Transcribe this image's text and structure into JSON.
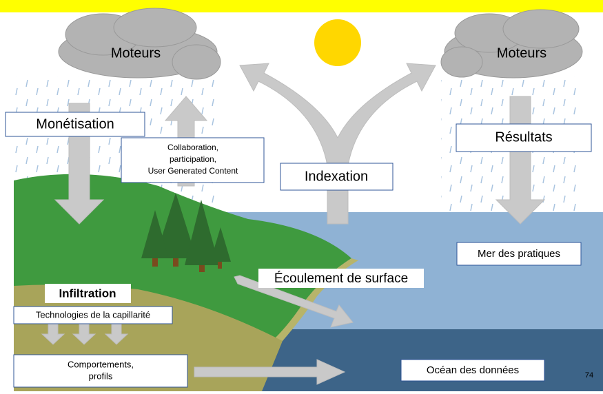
{
  "clouds": [
    {
      "label": "Moteurs"
    },
    {
      "label": "Moteurs"
    }
  ],
  "labels": {
    "monetisation": "Monétisation",
    "collaboration": [
      "Collaboration,",
      "participation,",
      "User Generated Content"
    ],
    "indexation": "Indexation",
    "resultats": "Résultats",
    "mer": "Mer des pratiques",
    "ecoulement": "Écoulement de surface",
    "infiltration": "Infiltration",
    "technologies": "Technologies de la capillarité",
    "comportements": [
      "Comportements,",
      "profils"
    ],
    "ocean": "Océan des données"
  },
  "page_number": "74"
}
